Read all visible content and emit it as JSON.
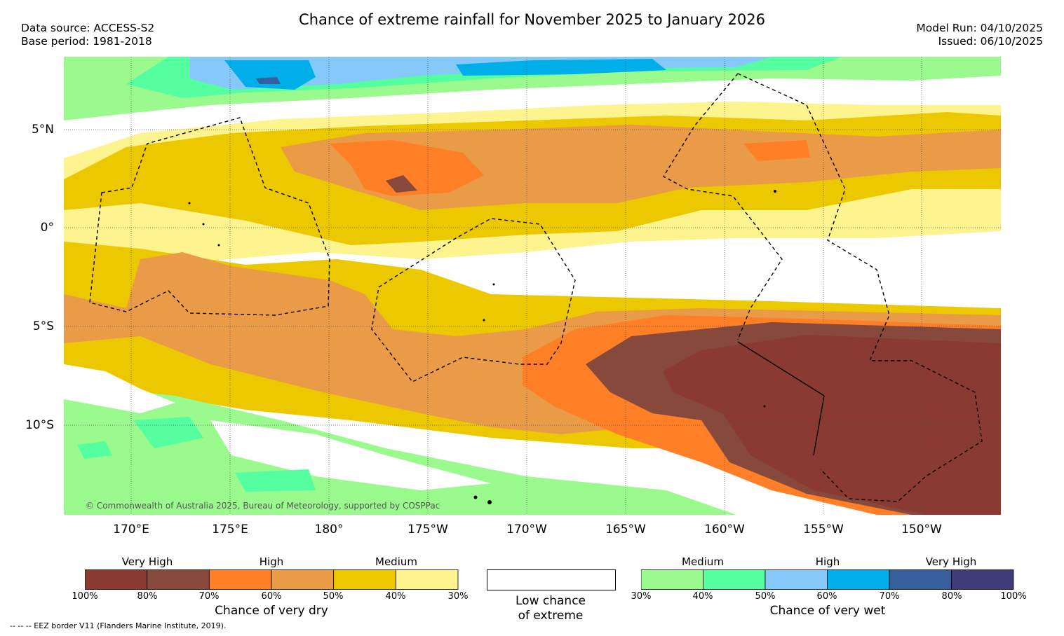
{
  "title": "Chance of extreme rainfall for November 2025 to January 2026",
  "meta_left": {
    "source": "Data source: ACCESS-S2",
    "period": "Base period: 1981-2018"
  },
  "meta_right": {
    "model_run": "Model Run: 04/10/2025",
    "issued": "Issued: 06/10/2025"
  },
  "map": {
    "lat_labels": [
      "5°N",
      "0°",
      "5°S",
      "10°S"
    ],
    "lon_labels": [
      "170°E",
      "175°E",
      "180°",
      "175°W",
      "170°W",
      "165°W",
      "160°W",
      "155°W",
      "150°W"
    ],
    "copyright": "© Commonwealth of Australia 2025, Bureau of Meteorology, supported by COSPPac",
    "extent": {
      "lon_min": 166,
      "lon_max": 213.5,
      "lat_min": -14.5,
      "lat_max": 8.7
    }
  },
  "legend_dry": {
    "categories": [
      "Very High",
      "High",
      "Medium"
    ],
    "ticks": [
      "100%",
      "80%",
      "70%",
      "60%",
      "50%",
      "40%",
      "30%"
    ],
    "colors": [
      "#8b3a32",
      "#86493b",
      "#ff7f27",
      "#ea9b47",
      "#ecc800",
      "#fdf490"
    ],
    "title": "Chance of very dry"
  },
  "legend_low": {
    "line1": "Low chance",
    "line2": "of extreme"
  },
  "legend_wet": {
    "categories": [
      "Medium",
      "High",
      "Very High"
    ],
    "ticks": [
      "30%",
      "40%",
      "50%",
      "60%",
      "70%",
      "80%",
      "100%"
    ],
    "colors": [
      "#9afa8e",
      "#55fe9f",
      "#87c8fa",
      "#00aeea",
      "#355e9b",
      "#3f3a78"
    ],
    "title": "Chance of very wet"
  },
  "footnote": "-- -- -- EEZ border V11 (Flanders Marine Institute, 2019)."
}
